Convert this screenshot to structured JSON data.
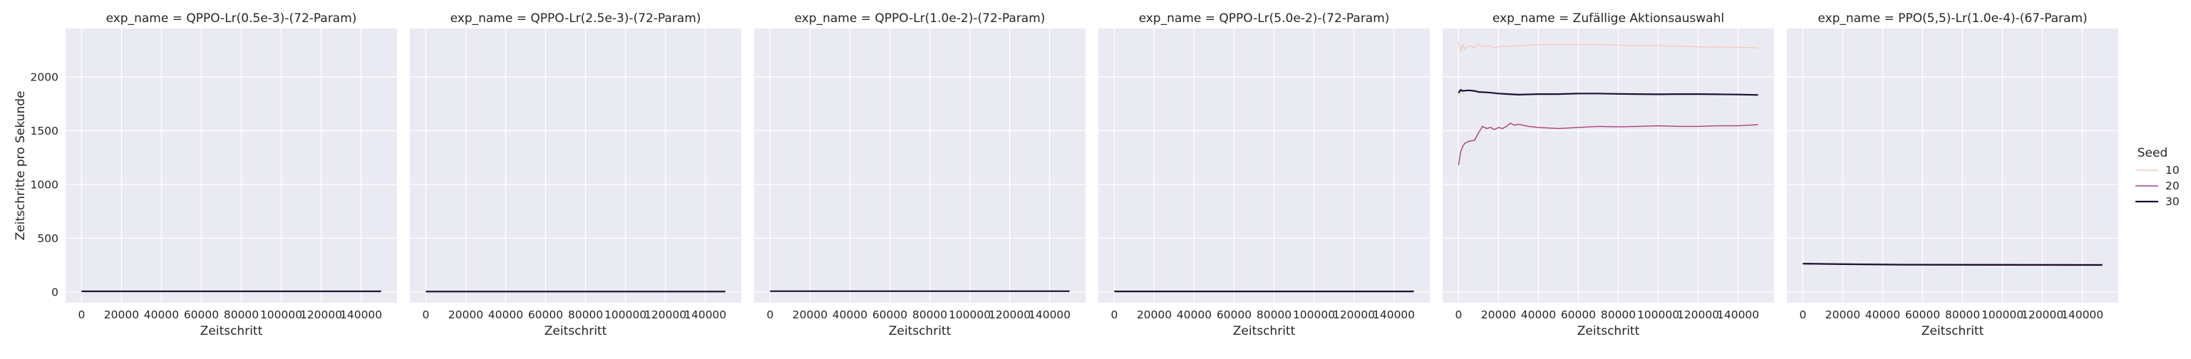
{
  "figure": {
    "legend_title": "Seed",
    "colors": {
      "panel_bg": "#eaeaf2",
      "grid": "#ffffff",
      "text": "#262626"
    }
  },
  "chart_data": [
    {
      "type": "line",
      "title": "exp_name = QPPO-Lr(0.5e-3)-(72-Param)",
      "xlabel": "Zeitschritt",
      "ylabel": "Zeitschritte pro Sekunde",
      "xlim": [
        -8000,
        158000
      ],
      "ylim": [
        -100,
        2450
      ],
      "xticks": [
        0,
        20000,
        40000,
        60000,
        80000,
        100000,
        120000,
        140000
      ],
      "yticks": [
        0,
        500,
        1000,
        1500,
        2000
      ],
      "grid": true,
      "series": [
        {
          "name": "10",
          "color": "#f3cbbf",
          "x": [
            0,
            150000
          ],
          "y": [
            8,
            8
          ]
        },
        {
          "name": "20",
          "color": "#a8427a",
          "x": [
            0,
            150000
          ],
          "y": [
            7,
            7
          ]
        },
        {
          "name": "30",
          "color": "#1a1134",
          "x": [
            0,
            150000
          ],
          "y": [
            6,
            6
          ]
        }
      ]
    },
    {
      "type": "line",
      "title": "exp_name = QPPO-Lr(2.5e-3)-(72-Param)",
      "xlabel": "Zeitschritt",
      "ylabel": "",
      "xlim": [
        -8000,
        158000
      ],
      "ylim": [
        -100,
        2450
      ],
      "xticks": [
        0,
        20000,
        40000,
        60000,
        80000,
        100000,
        120000,
        140000
      ],
      "yticks": [
        0,
        500,
        1000,
        1500,
        2000
      ],
      "grid": true,
      "series": [
        {
          "name": "10",
          "color": "#f3cbbf",
          "x": [
            0,
            150000
          ],
          "y": [
            6,
            6
          ]
        },
        {
          "name": "20",
          "color": "#a8427a",
          "x": [
            0,
            150000
          ],
          "y": [
            5,
            5
          ]
        },
        {
          "name": "30",
          "color": "#1a1134",
          "x": [
            0,
            150000
          ],
          "y": [
            4,
            4
          ]
        }
      ]
    },
    {
      "type": "line",
      "title": "exp_name = QPPO-Lr(1.0e-2)-(72-Param)",
      "xlabel": "Zeitschritt",
      "ylabel": "",
      "xlim": [
        -8000,
        158000
      ],
      "ylim": [
        -100,
        2450
      ],
      "xticks": [
        0,
        20000,
        40000,
        60000,
        80000,
        100000,
        120000,
        140000
      ],
      "yticks": [
        0,
        500,
        1000,
        1500,
        2000
      ],
      "grid": true,
      "series": [
        {
          "name": "10",
          "color": "#f3cbbf",
          "x": [
            0,
            150000
          ],
          "y": [
            9,
            9
          ]
        },
        {
          "name": "20",
          "color": "#a8427a",
          "x": [
            0,
            150000
          ],
          "y": [
            8,
            8
          ]
        },
        {
          "name": "30",
          "color": "#1a1134",
          "x": [
            0,
            150000
          ],
          "y": [
            7,
            7
          ]
        }
      ]
    },
    {
      "type": "line",
      "title": "exp_name = QPPO-Lr(5.0e-2)-(72-Param)",
      "xlabel": "Zeitschritt",
      "ylabel": "",
      "xlim": [
        -8000,
        158000
      ],
      "ylim": [
        -100,
        2450
      ],
      "xticks": [
        0,
        20000,
        40000,
        60000,
        80000,
        100000,
        120000,
        140000
      ],
      "yticks": [
        0,
        500,
        1000,
        1500,
        2000
      ],
      "grid": true,
      "series": [
        {
          "name": "10",
          "color": "#f3cbbf",
          "x": [
            0,
            150000
          ],
          "y": [
            7,
            7
          ]
        },
        {
          "name": "20",
          "color": "#a8427a",
          "x": [
            0,
            150000
          ],
          "y": [
            6,
            6
          ]
        },
        {
          "name": "30",
          "color": "#1a1134",
          "x": [
            0,
            150000
          ],
          "y": [
            5,
            5
          ]
        }
      ]
    },
    {
      "type": "line",
      "title": "exp_name = Zufällige Aktionsauswahl",
      "xlabel": "Zeitschritt",
      "ylabel": "",
      "xlim": [
        -8000,
        158000
      ],
      "ylim": [
        -100,
        2450
      ],
      "xticks": [
        0,
        20000,
        40000,
        60000,
        80000,
        100000,
        120000,
        140000
      ],
      "yticks": [
        0,
        500,
        1000,
        1500,
        2000
      ],
      "grid": true,
      "series": [
        {
          "name": "10",
          "color": "#f3cbbf",
          "x": [
            0,
            1000,
            2000,
            3000,
            5000,
            8000,
            10000,
            12000,
            15000,
            18000,
            20000,
            25000,
            30000,
            40000,
            50000,
            60000,
            70000,
            80000,
            90000,
            100000,
            110000,
            120000,
            130000,
            140000,
            150000
          ],
          "y": [
            2330,
            2230,
            2300,
            2260,
            2290,
            2270,
            2300,
            2280,
            2290,
            2270,
            2280,
            2285,
            2290,
            2300,
            2300,
            2300,
            2300,
            2295,
            2290,
            2290,
            2285,
            2280,
            2278,
            2275,
            2270
          ]
        },
        {
          "name": "20",
          "color": "#a8427a",
          "x": [
            0,
            1000,
            2000,
            3000,
            5000,
            8000,
            10000,
            12000,
            14000,
            16000,
            18000,
            20000,
            22000,
            24000,
            26000,
            28000,
            30000,
            35000,
            40000,
            50000,
            60000,
            70000,
            80000,
            90000,
            100000,
            110000,
            120000,
            130000,
            140000,
            150000
          ],
          "y": [
            1180,
            1300,
            1350,
            1380,
            1400,
            1410,
            1480,
            1540,
            1520,
            1530,
            1510,
            1530,
            1520,
            1540,
            1570,
            1550,
            1560,
            1540,
            1530,
            1520,
            1530,
            1540,
            1535,
            1540,
            1545,
            1540,
            1540,
            1545,
            1545,
            1555
          ]
        },
        {
          "name": "30",
          "color": "#1a1134",
          "x": [
            0,
            1000,
            2000,
            5000,
            8000,
            10000,
            15000,
            20000,
            25000,
            30000,
            40000,
            50000,
            60000,
            70000,
            80000,
            90000,
            100000,
            110000,
            120000,
            130000,
            140000,
            150000
          ],
          "y": [
            1850,
            1880,
            1870,
            1875,
            1870,
            1860,
            1855,
            1845,
            1840,
            1835,
            1840,
            1840,
            1845,
            1845,
            1842,
            1840,
            1838,
            1840,
            1840,
            1838,
            1836,
            1832
          ]
        }
      ]
    },
    {
      "type": "line",
      "title": "exp_name = PPO(5,5)-Lr(1.0e-4)-(67-Param)",
      "xlabel": "Zeitschritt",
      "ylabel": "",
      "xlim": [
        -8000,
        158000
      ],
      "ylim": [
        -100,
        2450
      ],
      "xticks": [
        0,
        20000,
        40000,
        60000,
        80000,
        100000,
        120000,
        140000
      ],
      "yticks": [
        0,
        500,
        1000,
        1500,
        2000
      ],
      "grid": true,
      "series": [
        {
          "name": "10",
          "color": "#f3cbbf",
          "x": [
            0,
            20000,
            50000,
            100000,
            150000
          ],
          "y": [
            268,
            262,
            258,
            257,
            256
          ]
        },
        {
          "name": "20",
          "color": "#a8427a",
          "x": [
            0,
            20000,
            50000,
            100000,
            150000
          ],
          "y": [
            266,
            260,
            256,
            255,
            254
          ]
        },
        {
          "name": "30",
          "color": "#1a1134",
          "x": [
            0,
            20000,
            50000,
            100000,
            150000
          ],
          "y": [
            263,
            258,
            254,
            252,
            251
          ]
        }
      ]
    }
  ]
}
